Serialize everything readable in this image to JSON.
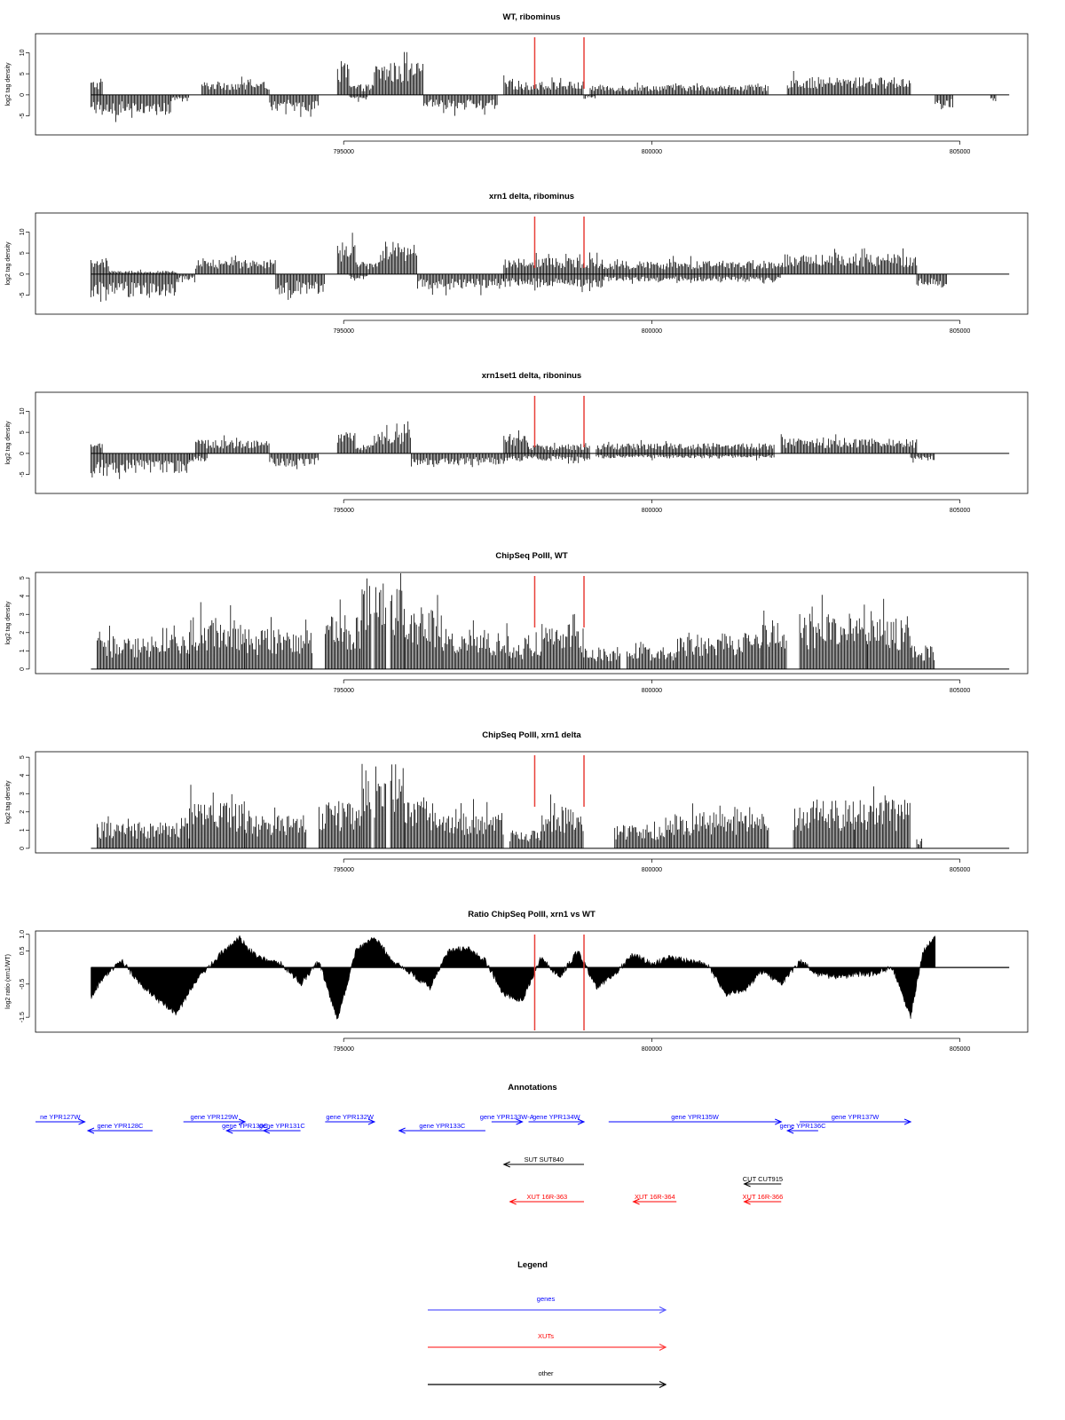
{
  "chart_data": [
    {
      "type": "bar",
      "title": "WT, ribominus",
      "ylabel": "log2 tag density",
      "xlim": [
        790000,
        806100
      ],
      "ylim": [
        -9.5,
        14.5
      ],
      "yticks": [
        -5,
        0,
        5,
        10
      ],
      "xticks": [
        795000,
        800000,
        805000
      ],
      "xtick_labels": [
        "795000",
        "800000",
        "805000"
      ],
      "marker_lines_x": [
        798100,
        798900
      ],
      "marker_color": "#e8403a",
      "pos_segments": [
        [
          790900,
          791100,
          3.5
        ],
        [
          792700,
          793800,
          3.2
        ],
        [
          794900,
          795100,
          8.0
        ],
        [
          795100,
          795500,
          2.5
        ],
        [
          795500,
          796300,
          7.8
        ],
        [
          797600,
          797900,
          3.5
        ],
        [
          797900,
          798200,
          3.0
        ],
        [
          798200,
          798900,
          3.2
        ],
        [
          799000,
          801900,
          2.4
        ],
        [
          802200,
          804200,
          4.2
        ]
      ],
      "neg_segments": [
        [
          790900,
          792200,
          -4.8
        ],
        [
          792200,
          792500,
          -1.5
        ],
        [
          793800,
          794600,
          -4.0
        ],
        [
          795100,
          795400,
          -1.2
        ],
        [
          796300,
          797500,
          -3.6
        ],
        [
          798900,
          799100,
          -0.8
        ],
        [
          804600,
          804900,
          -3.2
        ],
        [
          805500,
          805600,
          -1.5
        ]
      ]
    },
    {
      "type": "bar",
      "title": "xrn1 delta, ribominus",
      "ylabel": "log2 tag density",
      "xlim": [
        790000,
        806100
      ],
      "ylim": [
        -9.5,
        14.5
      ],
      "yticks": [
        -5,
        0,
        5,
        10
      ],
      "xticks": [
        795000,
        800000,
        805000
      ],
      "xtick_labels": [
        "795000",
        "800000",
        "805000"
      ],
      "marker_lines_x": [
        798100,
        798900
      ],
      "marker_color": "#e8403a",
      "pos_segments": [
        [
          790900,
          791200,
          4.0
        ],
        [
          791200,
          792300,
          0.8
        ],
        [
          792600,
          793900,
          3.5
        ],
        [
          794900,
          795200,
          7.5
        ],
        [
          795200,
          795600,
          3.0
        ],
        [
          795600,
          796200,
          7.8
        ],
        [
          797600,
          799200,
          4.0
        ],
        [
          799200,
          802100,
          3.2
        ],
        [
          802100,
          804300,
          4.8
        ]
      ],
      "neg_segments": [
        [
          790900,
          792300,
          -5.5
        ],
        [
          792300,
          792600,
          -1.5
        ],
        [
          793900,
          794700,
          -4.8
        ],
        [
          795100,
          795400,
          -1.2
        ],
        [
          796200,
          797600,
          -3.6
        ],
        [
          797600,
          799200,
          -3.2
        ],
        [
          799200,
          802100,
          -1.8
        ],
        [
          804300,
          804800,
          -3.2
        ]
      ]
    },
    {
      "type": "bar",
      "title": "xrn1set1 delta, riboninus",
      "ylabel": "log2 tag density",
      "xlim": [
        790000,
        806100
      ],
      "ylim": [
        -9.5,
        14.5
      ],
      "yticks": [
        -5,
        0,
        5,
        10
      ],
      "xticks": [
        795000,
        800000,
        805000
      ],
      "xtick_labels": [
        "795000",
        "800000",
        "805000"
      ],
      "marker_lines_x": [
        798100,
        798900
      ],
      "marker_color": "#e8403a",
      "pos_segments": [
        [
          790900,
          791100,
          2.5
        ],
        [
          792600,
          793800,
          3.3
        ],
        [
          794900,
          795200,
          5.0
        ],
        [
          795200,
          795500,
          2.0
        ],
        [
          795500,
          796100,
          5.8
        ],
        [
          797600,
          798000,
          4.2
        ],
        [
          798000,
          799000,
          2.2
        ],
        [
          799100,
          802000,
          2.4
        ],
        [
          802100,
          804300,
          3.6
        ]
      ],
      "neg_segments": [
        [
          790900,
          792500,
          -4.8
        ],
        [
          792500,
          792800,
          -2.0
        ],
        [
          793800,
          794600,
          -3.2
        ],
        [
          796100,
          797700,
          -2.8
        ],
        [
          797700,
          799000,
          -1.8
        ],
        [
          799100,
          802000,
          -1.2
        ],
        [
          804200,
          804600,
          -1.8
        ]
      ]
    },
    {
      "type": "bar",
      "title": "ChipSeq PolII, WT",
      "ylabel": "log2 tag density",
      "xlim": [
        790000,
        806100
      ],
      "ylim": [
        -0.25,
        5.3
      ],
      "yticks": [
        0,
        1,
        2,
        3,
        4,
        5
      ],
      "xticks": [
        795000,
        800000,
        805000
      ],
      "xtick_labels": [
        "795000",
        "800000",
        "805000"
      ],
      "marker_lines_x": [
        798100,
        798900
      ],
      "marker_color": "#e8403a",
      "pos_segments": [
        [
          791000,
          792500,
          1.8
        ],
        [
          792500,
          793400,
          2.9
        ],
        [
          793400,
          794500,
          2.2
        ],
        [
          794700,
          795300,
          3.0
        ],
        [
          795300,
          796000,
          5.0
        ],
        [
          796000,
          796600,
          3.4
        ],
        [
          796600,
          797700,
          2.0
        ],
        [
          797700,
          798200,
          1.5
        ],
        [
          798200,
          798900,
          2.6
        ],
        [
          798900,
          799500,
          1.2
        ],
        [
          799600,
          800400,
          1.2
        ],
        [
          800400,
          801800,
          2.0
        ],
        [
          801800,
          802200,
          2.8
        ],
        [
          802400,
          803500,
          3.1
        ],
        [
          803500,
          804200,
          2.9
        ],
        [
          804200,
          804600,
          1.3
        ]
      ],
      "gaps": [
        [
          795450,
          795500
        ],
        [
          795700,
          795750
        ]
      ]
    },
    {
      "type": "bar",
      "title": "ChipSeq PolII, xrn1 delta",
      "ylabel": "log2 tag density",
      "xlim": [
        790000,
        806100
      ],
      "ylim": [
        -0.25,
        5.3
      ],
      "yticks": [
        0,
        1,
        2,
        3,
        4,
        5
      ],
      "xticks": [
        795000,
        800000,
        805000
      ],
      "xtick_labels": [
        "795000",
        "800000",
        "805000"
      ],
      "marker_lines_x": [
        798100,
        798900
      ],
      "marker_color": "#e8403a",
      "pos_segments": [
        [
          791000,
          792500,
          1.5
        ],
        [
          792500,
          793400,
          2.6
        ],
        [
          793400,
          794400,
          1.8
        ],
        [
          794600,
          795300,
          2.5
        ],
        [
          795300,
          796000,
          4.8
        ],
        [
          796000,
          796500,
          2.8
        ],
        [
          796500,
          797600,
          2.0
        ],
        [
          797700,
          798200,
          1.0
        ],
        [
          798200,
          798900,
          2.3
        ],
        [
          799400,
          800300,
          1.3
        ],
        [
          800300,
          801900,
          2.0
        ],
        [
          802300,
          803300,
          2.7
        ],
        [
          803300,
          804200,
          2.7
        ],
        [
          804300,
          804400,
          0.5
        ]
      ],
      "gaps": [
        [
          795450,
          795500
        ],
        [
          795700,
          795750
        ]
      ]
    },
    {
      "type": "area",
      "title": "Ratio ChipSeq PolII, xrn1 vs WT",
      "ylabel": "log2 ratio (xrn1/WT)",
      "xlim": [
        790000,
        806100
      ],
      "ylim": [
        -1.95,
        1.1
      ],
      "yticks": [
        -1.5,
        -0.5,
        0.5,
        1.0
      ],
      "ytick_labels": [
        "-1.5",
        "-0.5",
        "0.5",
        "1.0"
      ],
      "xticks": [
        795000,
        800000,
        805000
      ],
      "xtick_labels": [
        "795000",
        "800000",
        "805000"
      ],
      "marker_lines_x": [
        798100,
        798900
      ],
      "marker_color": "#e8403a",
      "x": [
        790900,
        791100,
        791400,
        791700,
        792000,
        792300,
        792600,
        793000,
        793300,
        793600,
        794000,
        794300,
        794600,
        794900,
        795200,
        795500,
        795800,
        796100,
        796400,
        796700,
        797000,
        797300,
        797600,
        797900,
        798200,
        798500,
        798800,
        799100,
        799400,
        799700,
        800000,
        800300,
        800600,
        800900,
        801200,
        801500,
        801800,
        802100,
        802400,
        802700,
        803000,
        803300,
        803600,
        803900,
        804200,
        804400,
        804600
      ],
      "y": [
        -0.9,
        -0.3,
        0.2,
        -0.5,
        -1.0,
        -1.4,
        -0.4,
        0.4,
        0.9,
        0.3,
        0.1,
        -0.5,
        0.2,
        -1.6,
        0.5,
        0.9,
        0.2,
        -0.2,
        -0.6,
        0.5,
        0.6,
        0.2,
        -0.8,
        -1.0,
        0.3,
        -0.3,
        0.5,
        -0.6,
        -0.2,
        0.4,
        0.1,
        0.3,
        0.2,
        0.1,
        -0.8,
        -0.7,
        -0.1,
        -0.5,
        0.2,
        -0.2,
        -0.3,
        -0.2,
        -0.2,
        0.0,
        -1.5,
        0.5,
        0.9
      ]
    }
  ],
  "annotations": {
    "title": "Annotations",
    "xlim": [
      790000,
      806100
    ],
    "features": [
      {
        "label": "ne YPR127W",
        "start": 790000,
        "end": 790800,
        "dir": "right",
        "row": 0,
        "color": "#0000ff"
      },
      {
        "label": "gene YPR128C",
        "start": 790850,
        "end": 791900,
        "dir": "left",
        "row": 1,
        "color": "#0000ff"
      },
      {
        "label": "gene YPR129W",
        "start": 792400,
        "end": 793400,
        "dir": "right",
        "row": 0,
        "color": "#0000ff"
      },
      {
        "label": "gene YPR130C",
        "start": 793100,
        "end": 793700,
        "dir": "left",
        "row": 1,
        "color": "#0000ff"
      },
      {
        "label": "gene YPR131C",
        "start": 793700,
        "end": 794300,
        "dir": "left",
        "row": 1,
        "color": "#0000ff"
      },
      {
        "label": "gene YPR132W",
        "start": 794700,
        "end": 795500,
        "dir": "right",
        "row": 0,
        "color": "#0000ff"
      },
      {
        "label": "gene YPR133C",
        "start": 795900,
        "end": 797300,
        "dir": "left",
        "row": 1,
        "color": "#0000ff"
      },
      {
        "label": "gene YPR133W-A",
        "start": 797400,
        "end": 797900,
        "dir": "right",
        "row": 0,
        "color": "#0000ff"
      },
      {
        "label": "gene YPR134W",
        "start": 798000,
        "end": 798900,
        "dir": "right",
        "row": 0,
        "color": "#0000ff"
      },
      {
        "label": "gene YPR135W",
        "start": 799300,
        "end": 802100,
        "dir": "right",
        "row": 0,
        "color": "#0000ff"
      },
      {
        "label": "gene YPR136C",
        "start": 802200,
        "end": 802700,
        "dir": "left",
        "row": 1,
        "color": "#0000ff"
      },
      {
        "label": "gene YPR137W",
        "start": 802400,
        "end": 804200,
        "dir": "right",
        "row": 0,
        "color": "#0000ff"
      },
      {
        "label": "SUT SUT840",
        "start": 797600,
        "end": 798900,
        "dir": "left",
        "row": 2,
        "color": "#000000"
      },
      {
        "label": "CUT CUT915",
        "start": 801500,
        "end": 802100,
        "dir": "left",
        "row": 3,
        "color": "#000000"
      },
      {
        "label": "XUT 16R-363",
        "start": 797700,
        "end": 798900,
        "dir": "left",
        "row": 4,
        "color": "#ff0000"
      },
      {
        "label": "XUT 16R-364",
        "start": 799700,
        "end": 800400,
        "dir": "left",
        "row": 4,
        "color": "#ff0000"
      },
      {
        "label": "XUT 16R-366",
        "start": 801500,
        "end": 802100,
        "dir": "left",
        "row": 4,
        "color": "#ff0000"
      }
    ]
  },
  "legend": {
    "title": "Legend",
    "items": [
      {
        "label": "genes",
        "color": "#5a5aff"
      },
      {
        "label": "XUTs",
        "color": "#ff3a3a"
      },
      {
        "label": "other",
        "color": "#000000"
      }
    ]
  }
}
